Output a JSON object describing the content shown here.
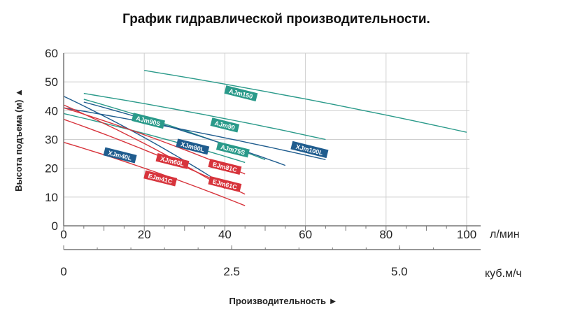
{
  "chart_data": {
    "type": "line",
    "title": "График гидравлической производительности.",
    "ylabel": "Высота подъема (м)",
    "ylabel_arrow": "▲",
    "xlabel": "Производительность",
    "xlabel_arrow": "►",
    "x_unit": "л/мин",
    "x2_unit": "куб.м/ч",
    "xlim": [
      0,
      100
    ],
    "ylim": [
      0,
      60
    ],
    "x_ticks": [
      0,
      20,
      40,
      60,
      80,
      100
    ],
    "y_ticks": [
      0,
      10,
      20,
      30,
      40,
      50,
      60
    ],
    "x2_ticks": [
      "0",
      "2.5",
      "5.0"
    ],
    "x2_tick_lpm": [
      0,
      41.7,
      83.3
    ],
    "grid": true,
    "colors": {
      "grid": "#cfcfcf",
      "axis": "#777777",
      "teal": "#2a9a8a",
      "navy": "#1f5c8e",
      "red": "#d7343c"
    },
    "series": [
      {
        "name": "AJm150",
        "color": "#2a9a8a",
        "x": [
          20,
          100
        ],
        "y": [
          54,
          32.5
        ],
        "label_at": [
          44,
          46
        ]
      },
      {
        "name": "AJm90",
        "color": "#2a9a8a",
        "x": [
          5,
          65
        ],
        "y": [
          46,
          30
        ],
        "label_at": [
          40,
          35
        ]
      },
      {
        "name": "AJm90S",
        "color": "#2a9a8a",
        "x": [
          5,
          50
        ],
        "y": [
          44,
          23
        ],
        "label_at": [
          21,
          36.5
        ]
      },
      {
        "name": "AJm75S",
        "color": "#2a9a8a",
        "x": [
          0,
          45
        ],
        "y": [
          39,
          22
        ],
        "label_at": [
          42,
          26.5
        ]
      },
      {
        "name": "XJm100L",
        "color": "#1f5c8e",
        "x": [
          0,
          65
        ],
        "y": [
          41,
          23
        ],
        "label_at": [
          61,
          26.5
        ]
      },
      {
        "name": "XJm80L",
        "color": "#1f5c8e",
        "x": [
          5,
          55
        ],
        "y": [
          43,
          21
        ],
        "label_at": [
          32,
          27.5
        ]
      },
      {
        "name": "XJm40L",
        "color": "#1f5c8e",
        "x": [
          0,
          40
        ],
        "y": [
          45,
          14
        ],
        "label_at": [
          14,
          24.5
        ]
      },
      {
        "name": "XJm60L",
        "color": "#d7343c",
        "x": [
          0,
          40
        ],
        "y": [
          42,
          13
        ],
        "label_at": [
          27,
          22.5
        ]
      },
      {
        "name": "EJm81C",
        "color": "#d7343c",
        "x": [
          0,
          45
        ],
        "y": [
          41,
          18
        ],
        "label_at": [
          40,
          20.5
        ]
      },
      {
        "name": "EJm61C",
        "color": "#d7343c",
        "x": [
          0,
          45
        ],
        "y": [
          37,
          11
        ],
        "label_at": [
          40,
          14.5
        ]
      },
      {
        "name": "EJm41C",
        "color": "#d7343c",
        "x": [
          0,
          45
        ],
        "y": [
          29,
          7
        ],
        "label_at": [
          24,
          16.5
        ]
      }
    ]
  }
}
